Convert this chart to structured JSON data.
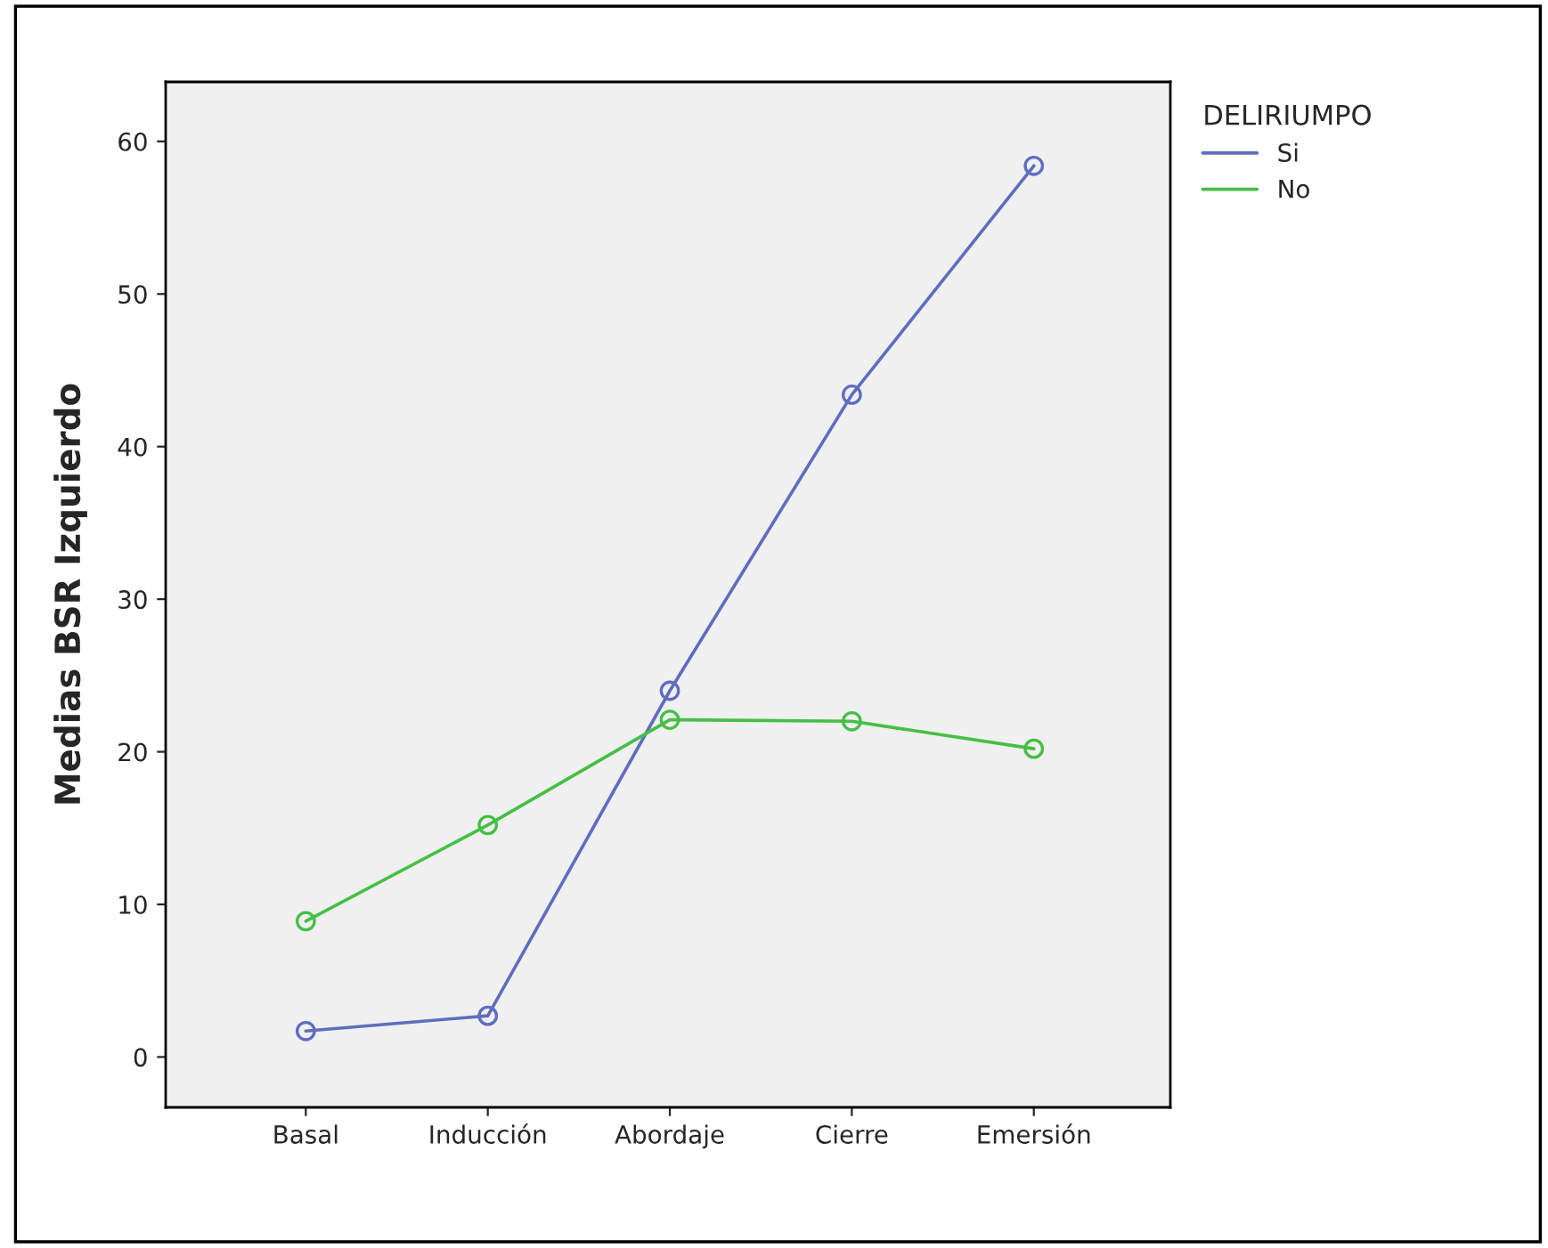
{
  "chart_data": {
    "type": "line",
    "ylabel": "Medias BSR Izquierdo",
    "legend_title": "DELIRIUMPO",
    "categories": [
      "Basal",
      "Inducción",
      "Abordaje",
      "Cierre",
      "Emersión"
    ],
    "series": [
      {
        "name": "Si",
        "color": "#5f6dbf",
        "values": [
          1.7,
          2.7,
          24.0,
          43.4,
          58.4
        ]
      },
      {
        "name": "No",
        "color": "#45bf45",
        "values": [
          8.9,
          15.2,
          22.1,
          22.0,
          20.2
        ]
      }
    ],
    "ylim": [
      -3.3,
      63.9
    ],
    "yticks": [
      0,
      10,
      20,
      30,
      40,
      50,
      60
    ],
    "marker": "circle",
    "line_style": "solid",
    "grid": false,
    "legend": "top right"
  }
}
